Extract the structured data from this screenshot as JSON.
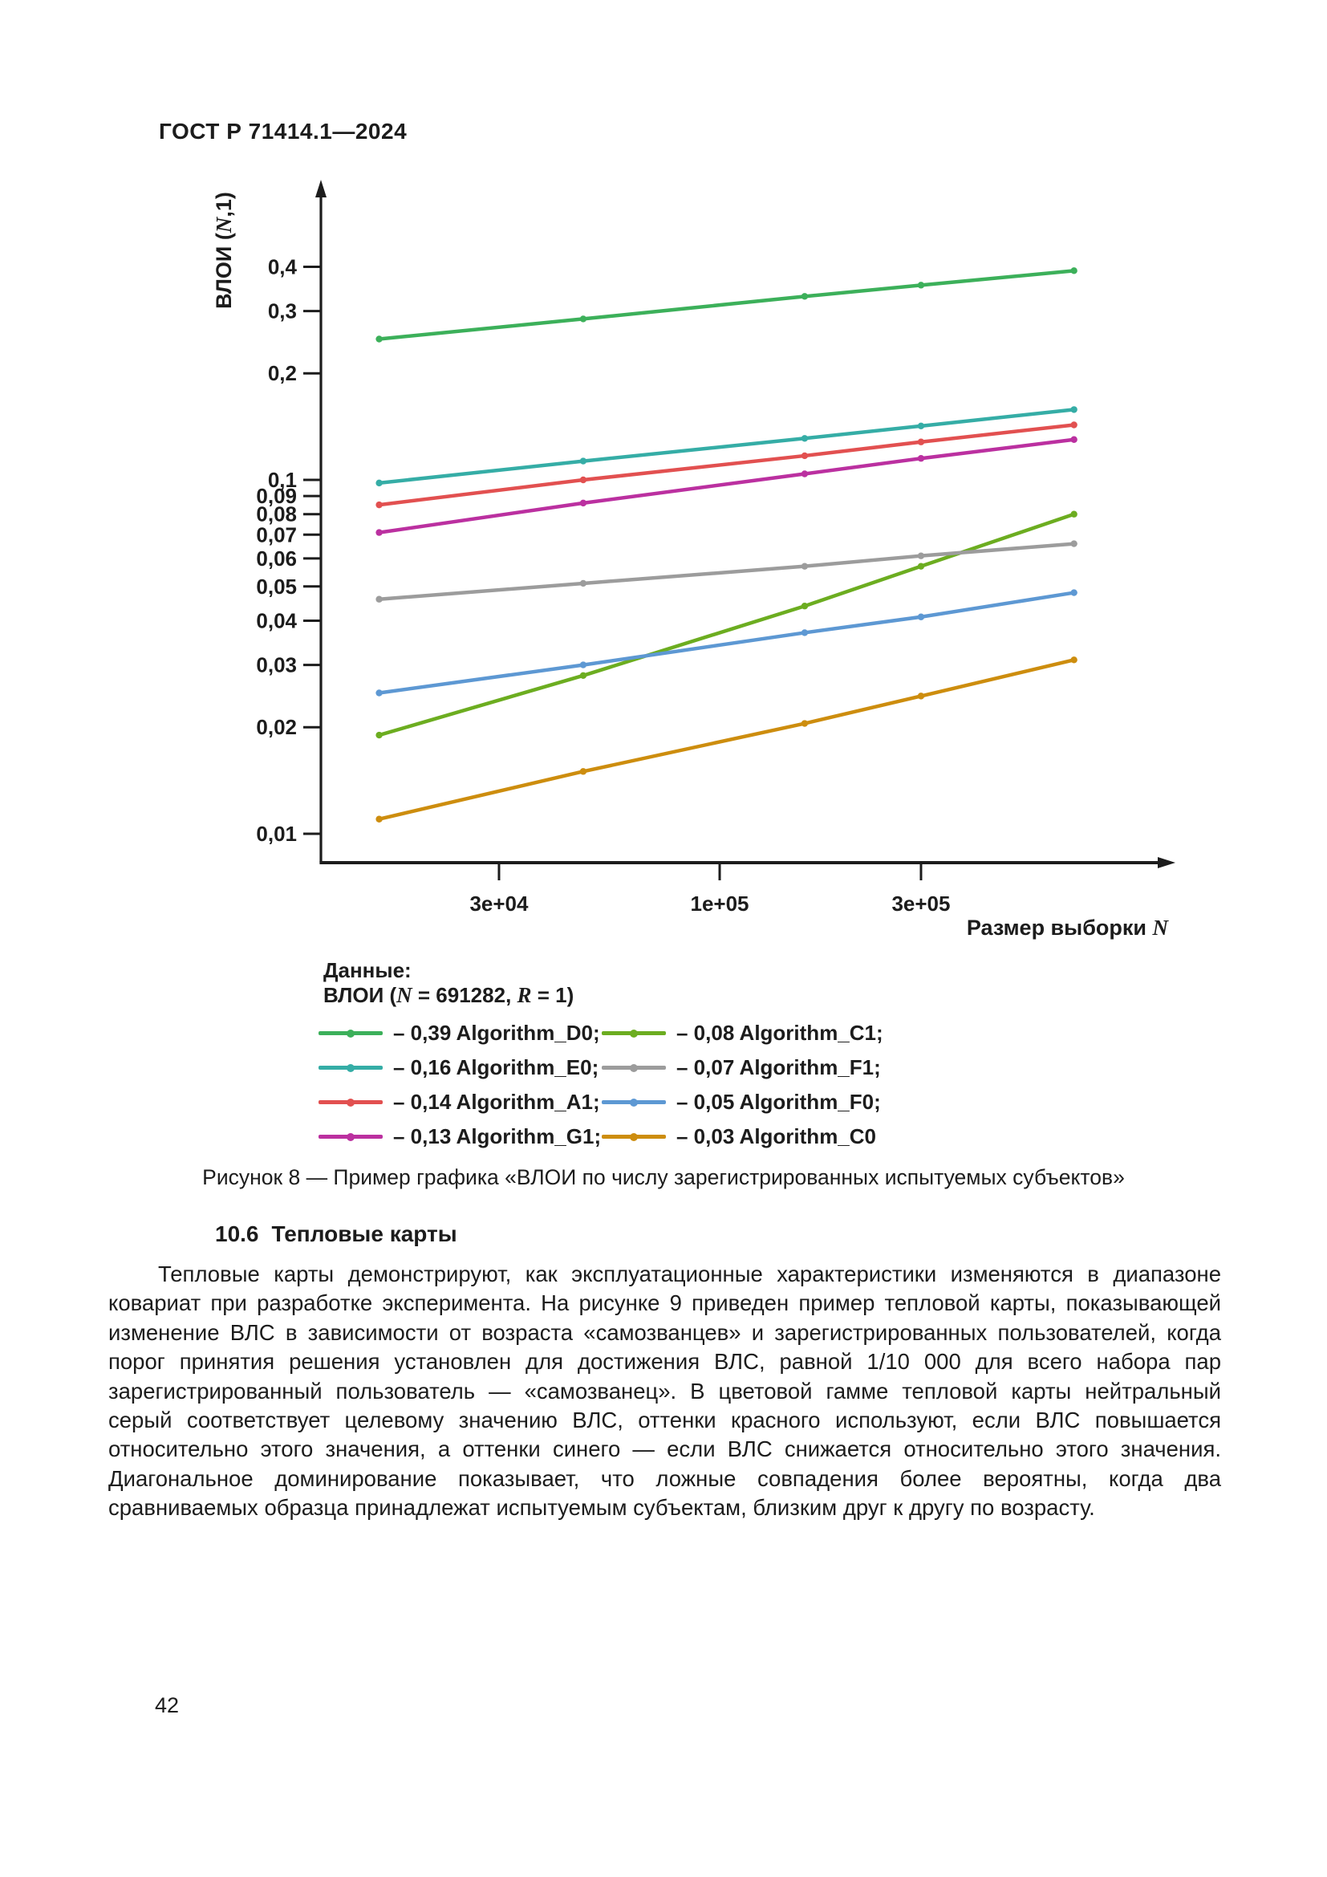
{
  "page": {
    "header": "ГОСТ Р 71414.1—2024",
    "page_number": "42",
    "figure_caption": "Рисунок 8 — Пример графика «ВЛОИ по числу зарегистрированных испытуемых субъектов»",
    "section": {
      "number": "10.6",
      "title": "Тепловые карты"
    },
    "body_paragraph": "Тепловые карты демонстрируют, как эксплуатационные характеристики изменяются в диапазоне ковариат при разработке эксперимента. На рисунке 9 приведен пример тепловой карты, показывающей изменение ВЛС в зависимости от возраста «самозванцев» и зарегистрированных пользователей, когда порог принятия решения установлен для достижения ВЛС, равной 1/10 000 для всего набора пар зарегистрированный пользователь — «самозванец». В цветовой гамме тепловой карты нейтральный серый соответствует целевому значению ВЛС, оттенки красного используют, если ВЛС повышается относительно этого значения, а оттенки синего — если ВЛС снижается относительно этого значения. Диагональное доминирование показывает, что ложные совпадения более вероятны, когда два сравниваемых образца принадлежат испытуемым субъектам, близким друг к другу по возрасту."
  },
  "chart_data": {
    "type": "line",
    "title": "",
    "x_axis": {
      "label": "Размер выборки N",
      "scale": "log",
      "range": [
        14000,
        1100000
      ],
      "ticks": [
        {
          "label": "3e+04",
          "value": 30000
        },
        {
          "label": "1e+05",
          "value": 100000
        },
        {
          "label": "3e+05",
          "value": 300000
        }
      ]
    },
    "y_axis": {
      "label": "ВЛОИ (N,1)",
      "scale": "log",
      "range": [
        0.0095,
        0.55
      ],
      "ticks": [
        {
          "label": "0,4",
          "value": 0.4
        },
        {
          "label": "0,3",
          "value": 0.3
        },
        {
          "label": "0,2",
          "value": 0.2
        },
        {
          "label": "0,1",
          "value": 0.1
        },
        {
          "label": "0,09",
          "value": 0.09
        },
        {
          "label": "0,08",
          "value": 0.08
        },
        {
          "label": "0,07",
          "value": 0.07
        },
        {
          "label": "0,06",
          "value": 0.06
        },
        {
          "label": "0,05",
          "value": 0.05
        },
        {
          "label": "0,04",
          "value": 0.04
        },
        {
          "label": "0,03",
          "value": 0.03
        },
        {
          "label": "0,02",
          "value": 0.02
        },
        {
          "label": "0,01",
          "value": 0.01
        }
      ]
    },
    "x": [
      15600,
      47500,
      159000,
      300000,
      691282
    ],
    "series": [
      {
        "name": "Algorithm_D0",
        "legend_label": "– 0,39 Algorithm_D0;",
        "final_value": "0,39",
        "color": "#3cb05a",
        "values": [
          0.25,
          0.285,
          0.33,
          0.355,
          0.39
        ]
      },
      {
        "name": "Algorithm_E0",
        "legend_label": "– 0,16 Algorithm_E0;",
        "final_value": "0,16",
        "color": "#35ada6",
        "values": [
          0.098,
          0.113,
          0.131,
          0.142,
          0.158
        ]
      },
      {
        "name": "Algorithm_A1",
        "legend_label": "– 0,14 Algorithm_A1;",
        "final_value": "0,14",
        "color": "#e25050",
        "values": [
          0.085,
          0.1,
          0.117,
          0.128,
          0.143
        ]
      },
      {
        "name": "Algorithm_G1",
        "legend_label": "– 0,13 Algorithm_G1;",
        "final_value": "0,13",
        "color": "#bb30a0",
        "values": [
          0.071,
          0.086,
          0.104,
          0.115,
          0.13
        ]
      },
      {
        "name": "Algorithm_C1",
        "legend_label": "– 0,08 Algorithm_C1;",
        "final_value": "0,08",
        "color": "#6cad20",
        "values": [
          0.019,
          0.028,
          0.044,
          0.057,
          0.08
        ]
      },
      {
        "name": "Algorithm_F1",
        "legend_label": "– 0,07 Algorithm_F1;",
        "final_value": "0,07",
        "color": "#9c9c9c",
        "values": [
          0.046,
          0.051,
          0.057,
          0.061,
          0.066
        ]
      },
      {
        "name": "Algorithm_F0",
        "legend_label": "– 0,05 Algorithm_F0;",
        "final_value": "0,05",
        "color": "#5d98d3",
        "values": [
          0.025,
          0.03,
          0.037,
          0.041,
          0.048
        ]
      },
      {
        "name": "Algorithm_C0",
        "legend_label": "– 0,03 Algorithm_C0",
        "final_value": "0,03",
        "color": "#cd8d0e",
        "values": [
          0.011,
          0.015,
          0.0205,
          0.0245,
          0.031
        ]
      }
    ],
    "legend": {
      "title": "Данные:",
      "subtitle": "ВЛОИ (N = 691282, R = 1)",
      "columns": 2,
      "position": "below-left"
    },
    "grid": false
  }
}
